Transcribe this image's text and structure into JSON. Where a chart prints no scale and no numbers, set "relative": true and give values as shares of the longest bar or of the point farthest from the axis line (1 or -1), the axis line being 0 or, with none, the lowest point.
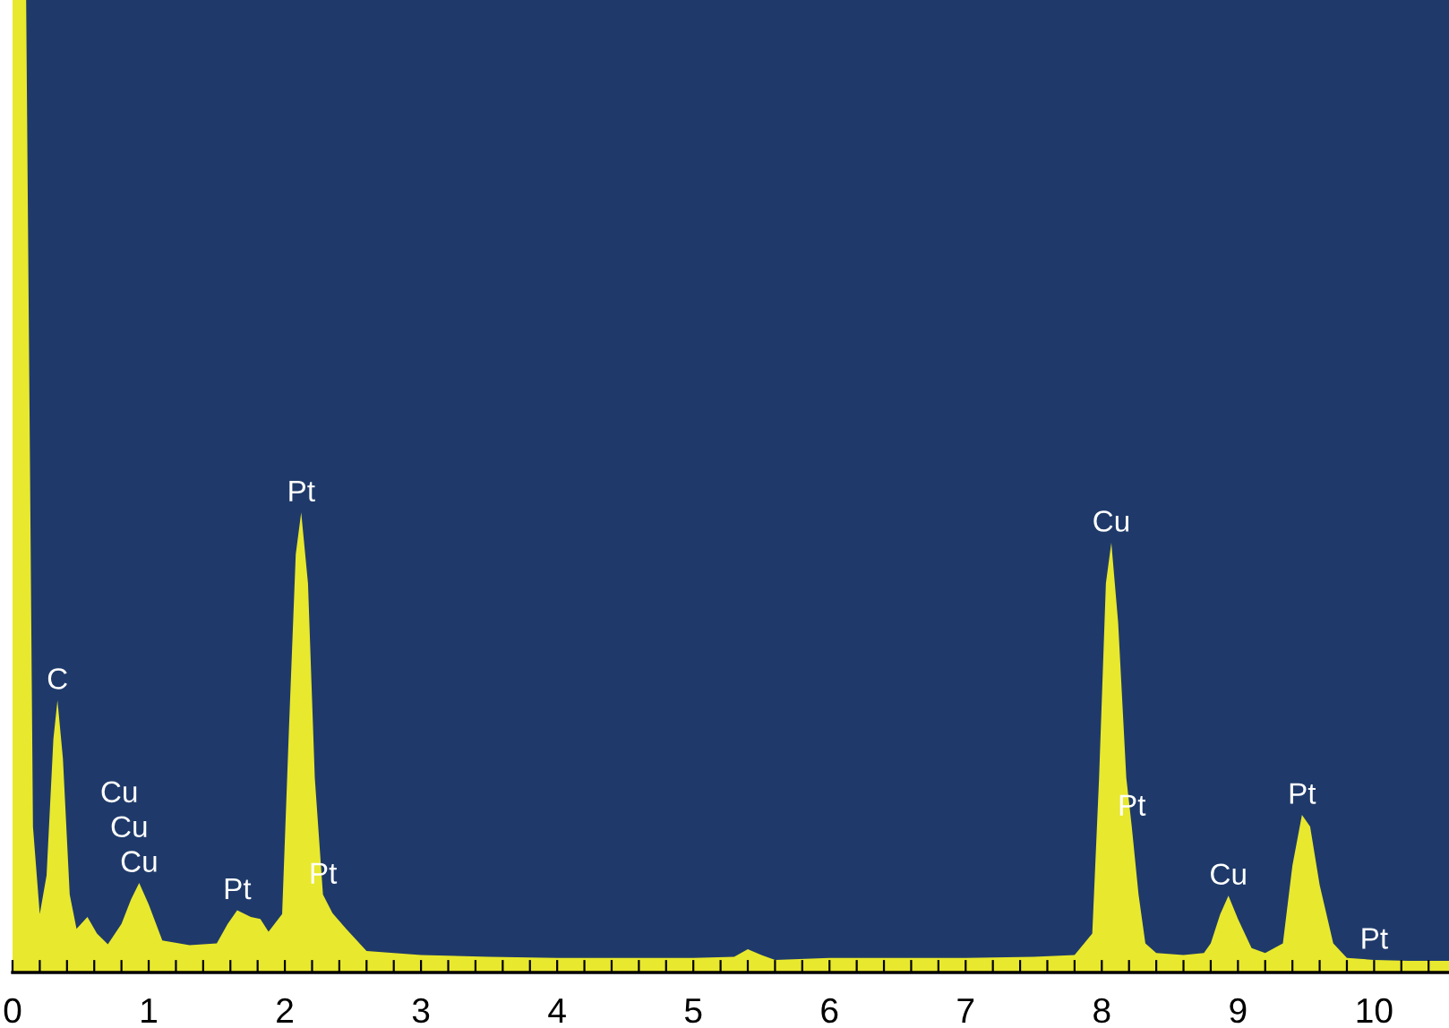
{
  "chart_data": {
    "type": "area",
    "relative": true,
    "tick_labels": "x",
    "grid": false,
    "legend": false,
    "xlim": [
      0,
      10.55
    ],
    "xticks": [
      0,
      {
        "value": 0.2,
        "label": null
      },
      {
        "value": 0.4,
        "label": null
      },
      {
        "value": 0.6,
        "label": null
      },
      {
        "value": 0.8,
        "label": null
      },
      1,
      {
        "value": 1.2,
        "label": null
      },
      {
        "value": 1.4,
        "label": null
      },
      {
        "value": 1.6,
        "label": null
      },
      {
        "value": 1.8,
        "label": null
      },
      2,
      {
        "value": 2.2,
        "label": null
      },
      {
        "value": 2.4,
        "label": null
      },
      {
        "value": 2.6,
        "label": null
      },
      {
        "value": 2.8,
        "label": null
      },
      3,
      {
        "value": 3.2,
        "label": null
      },
      {
        "value": 3.4,
        "label": null
      },
      {
        "value": 3.6,
        "label": null
      },
      {
        "value": 3.8,
        "label": null
      },
      4,
      {
        "value": 4.2,
        "label": null
      },
      {
        "value": 4.4,
        "label": null
      },
      {
        "value": 4.6,
        "label": null
      },
      {
        "value": 4.8,
        "label": null
      },
      5,
      {
        "value": 5.2,
        "label": null
      },
      {
        "value": 5.4,
        "label": null
      },
      {
        "value": 5.6,
        "label": null
      },
      {
        "value": 5.8,
        "label": null
      },
      6,
      {
        "value": 6.2,
        "label": null
      },
      {
        "value": 6.4,
        "label": null
      },
      {
        "value": 6.6,
        "label": null
      },
      {
        "value": 6.8,
        "label": null
      },
      7,
      {
        "value": 7.2,
        "label": null
      },
      {
        "value": 7.4,
        "label": null
      },
      {
        "value": 7.6,
        "label": null
      },
      {
        "value": 7.8,
        "label": null
      },
      8,
      {
        "value": 8.2,
        "label": null
      },
      {
        "value": 8.4,
        "label": null
      },
      {
        "value": 8.6,
        "label": null
      },
      {
        "value": 8.8,
        "label": null
      },
      9,
      {
        "value": 9.2,
        "label": null
      },
      {
        "value": 9.4,
        "label": null
      },
      {
        "value": 9.6,
        "label": null
      },
      {
        "value": 9.8,
        "label": null
      },
      10,
      {
        "value": 10.2,
        "label": null
      },
      {
        "value": 10.4,
        "label": null
      }
    ],
    "series": [
      {
        "color": "#e8e82e",
        "x": [
          0,
          0.1,
          0.15,
          0.2,
          0.25,
          0.3,
          0.33,
          0.37,
          0.42,
          0.47,
          0.55,
          0.62,
          0.7,
          0.8,
          0.87,
          0.93,
          1.0,
          1.1,
          1.3,
          1.5,
          1.58,
          1.65,
          1.75,
          1.82,
          1.88,
          1.98,
          2.03,
          2.08,
          2.12,
          2.17,
          2.22,
          2.28,
          2.35,
          2.45,
          2.6,
          3.0,
          3.5,
          4.0,
          4.5,
          5.0,
          5.3,
          5.4,
          5.5,
          5.6,
          6.0,
          6.5,
          7.0,
          7.5,
          7.8,
          7.93,
          7.98,
          8.03,
          8.07,
          8.12,
          8.18,
          8.22,
          8.27,
          8.32,
          8.4,
          8.6,
          8.75,
          8.8,
          8.87,
          8.93,
          9.0,
          9.1,
          9.2,
          9.33,
          9.4,
          9.47,
          9.53,
          9.6,
          9.7,
          9.8,
          10.0,
          10.25,
          10.55
        ],
        "values": [
          1,
          1,
          0.15,
          0.06,
          0.1,
          0.24,
          0.28,
          0.22,
          0.08,
          0.045,
          0.057,
          0.04,
          0.029,
          0.05,
          0.075,
          0.092,
          0.07,
          0.033,
          0.028,
          0.03,
          0.05,
          0.064,
          0.057,
          0.055,
          0.042,
          0.06,
          0.25,
          0.43,
          0.473,
          0.4,
          0.2,
          0.08,
          0.061,
          0.045,
          0.022,
          0.018,
          0.016,
          0.015,
          0.015,
          0.015,
          0.016,
          0.024,
          0.018,
          0.013,
          0.015,
          0.015,
          0.015,
          0.016,
          0.018,
          0.04,
          0.2,
          0.4,
          0.442,
          0.36,
          0.2,
          0.15,
          0.08,
          0.03,
          0.02,
          0.018,
          0.02,
          0.03,
          0.06,
          0.079,
          0.055,
          0.025,
          0.02,
          0.03,
          0.11,
          0.162,
          0.15,
          0.09,
          0.03,
          0.015,
          0.013,
          0.012,
          0.012
        ]
      }
    ],
    "annotations": [
      {
        "text": "C",
        "x": 0.33,
        "y": 0.28
      },
      {
        "text": "Cu",
        "x": 0.93,
        "y": 0.092
      },
      {
        "text": "Cu",
        "x": 0.93,
        "y": 0.092
      },
      {
        "text": "Cu",
        "x": 0.93,
        "y": 0.092
      },
      {
        "text": "Pt",
        "x": 1.65,
        "y": 0.064
      },
      {
        "text": "Pt",
        "x": 2.12,
        "y": 0.473
      },
      {
        "text": "Pt",
        "x": 2.28,
        "y": 0.08
      },
      {
        "text": "Cu",
        "x": 8.07,
        "y": 0.442
      },
      {
        "text": "Pt",
        "x": 8.22,
        "y": 0.15
      },
      {
        "text": "Cu",
        "x": 8.93,
        "y": 0.079
      },
      {
        "text": "Pt",
        "x": 9.47,
        "y": 0.162
      },
      {
        "text": "Pt",
        "x": 10.0,
        "y": 0.013
      }
    ]
  }
}
